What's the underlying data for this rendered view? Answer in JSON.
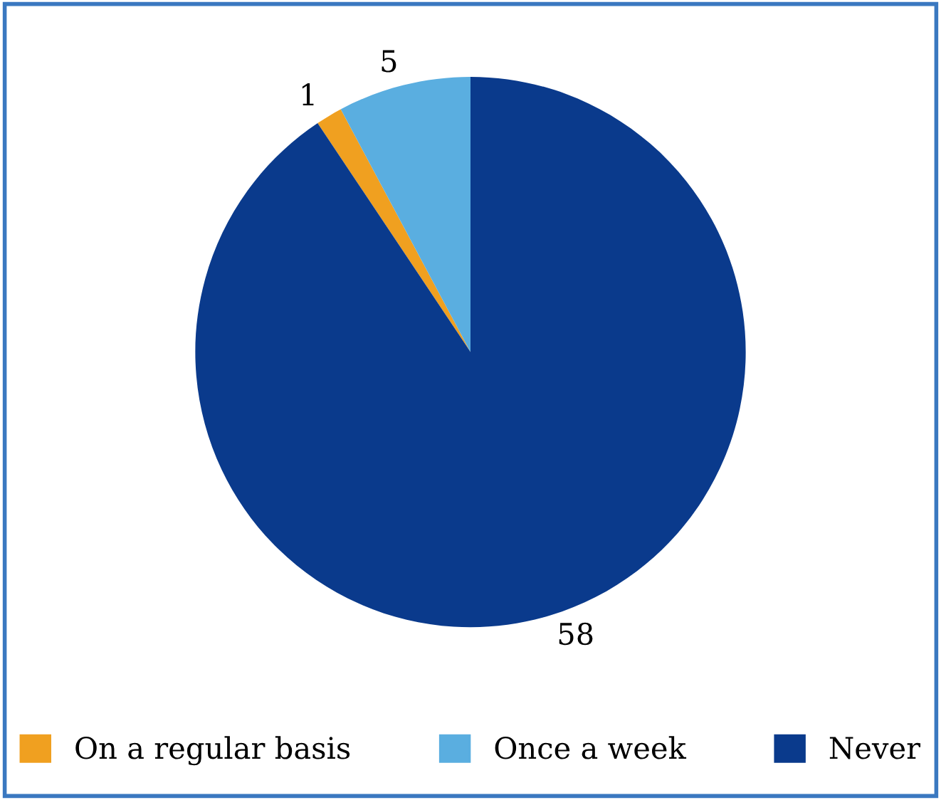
{
  "chart_data": {
    "type": "pie",
    "categories": [
      "On a regular basis",
      "Once a week",
      "Never"
    ],
    "values": [
      1,
      5,
      58
    ],
    "colors": [
      "#f0a020",
      "#5aaee0",
      "#0a3a8c"
    ],
    "data_labels": true,
    "legend": "bottom"
  }
}
